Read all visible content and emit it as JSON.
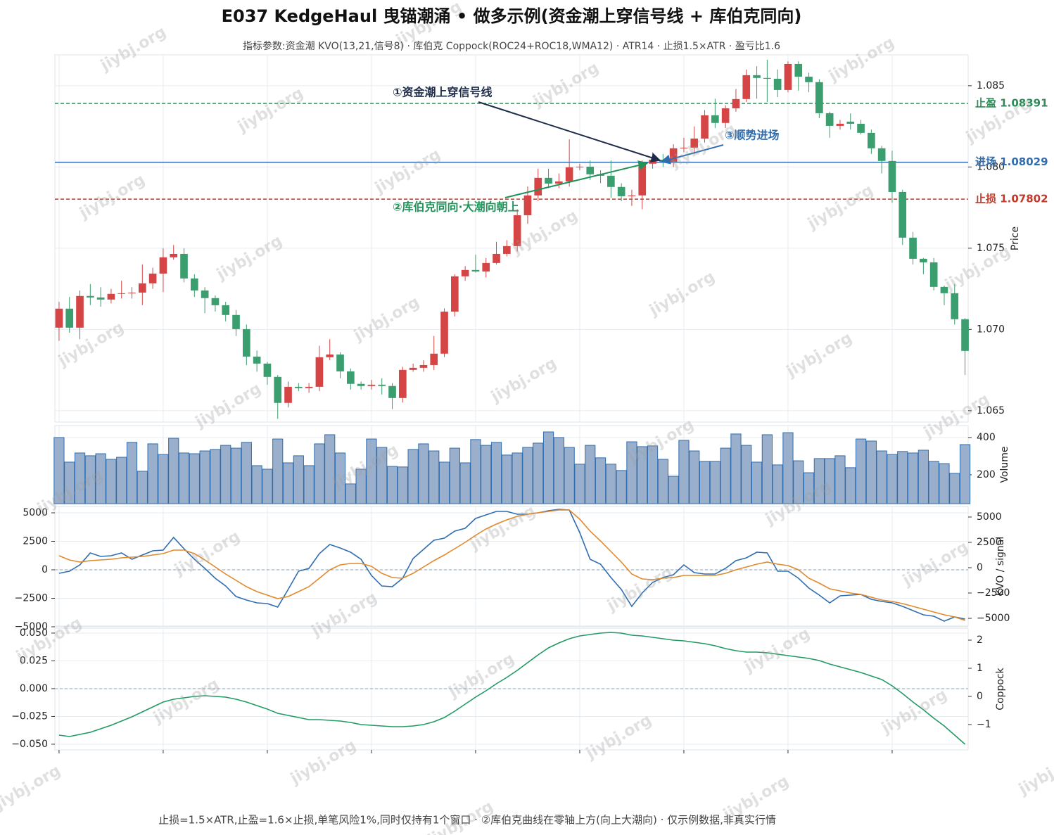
{
  "title": "E037 KedgeHaul 曳锚潮涌 • 做多示例(资金潮上穿信号线 + 库伯克同向)",
  "subtitle": "指标参数:资金潮 KVO(13,21,信号8) · 库伯克 Coppock(ROC24+ROC18,WMA12) · ATR14 · 止损1.5×ATR · 盈亏比1.6",
  "footnote": "止损=1.5×ATR,止盈=1.6×止损,单笔风险1%,同时仅持有1个窗口 · ②库伯克曲线在零轴上方(向上大潮向) · 仅示例数据,非真实行情",
  "watermark": "jiybj.org",
  "chart_data": [
    {
      "type": "candlestick",
      "ylabel": "Price",
      "ytick_side": "right",
      "grid": true,
      "up_color": "#d64545",
      "down_color": "#3a9e6e",
      "xlim": [
        -0.4,
        87.3
      ],
      "xticks": [
        0,
        10,
        20,
        30,
        40,
        50,
        60,
        70,
        80
      ],
      "ylim": [
        1.0643,
        1.0869
      ],
      "yticks": [
        1.065,
        {
          "value": 1.07,
          "label": "1.070"
        },
        1.075,
        {
          "value": 1.08,
          "label": "1.080"
        },
        1.085
      ],
      "open": [
        1.07011,
        1.07128,
        1.07011,
        1.07206,
        1.07197,
        1.07184,
        1.07219,
        1.07223,
        1.07227,
        1.07284,
        1.07344,
        1.07444,
        1.07465,
        1.07314,
        1.0724,
        1.07193,
        1.07149,
        1.07089,
        1.07002,
        1.06833,
        1.0679,
        1.06708,
        1.06548,
        1.06647,
        1.06639,
        1.06647,
        1.06829,
        1.06846,
        1.06742,
        1.06665,
        1.06652,
        1.0666,
        1.06652,
        1.06578,
        1.06751,
        1.06764,
        1.06781,
        1.06851,
        1.0711,
        1.07327,
        1.07366,
        1.07357,
        1.07409,
        1.07465,
        1.07513,
        1.07703,
        1.07825,
        1.07933,
        1.07898,
        1.07911,
        1.07998,
        1.08002,
        1.07955,
        1.07946,
        1.07877,
        1.0782,
        1.07825,
        1.0802,
        1.08045,
        1.08032,
        1.08115,
        1.08119,
        1.08175,
        1.08318,
        1.08271,
        1.08361,
        1.08418,
        1.08565,
        1.08548,
        1.08543,
        1.08474,
        1.08634,
        1.08556,
        1.08522,
        1.08331,
        1.08253,
        1.08279,
        1.08266,
        1.0821,
        1.08115,
        1.08037,
        1.07846,
        1.07565,
        1.07435,
        1.07413,
        1.07262,
        1.07223,
        1.07063
      ],
      "high": [
        1.0717,
        1.072,
        1.0724,
        1.0728,
        1.0726,
        1.0725,
        1.073,
        1.0726,
        1.074,
        1.0738,
        1.075,
        1.0752,
        1.075,
        1.0734,
        1.0726,
        1.0721,
        1.0717,
        1.0712,
        1.0703,
        1.0687,
        1.068,
        1.0672,
        1.0668,
        1.0667,
        1.0667,
        1.069,
        1.0694,
        1.0686,
        1.0676,
        1.0668,
        1.0669,
        1.067,
        1.0667,
        1.0677,
        1.0679,
        1.0681,
        1.0696,
        1.0713,
        1.0734,
        1.0739,
        1.0746,
        1.0744,
        1.0754,
        1.0755,
        1.0774,
        1.0788,
        1.0799,
        1.0799,
        1.0796,
        1.0817,
        1.0802,
        1.0804,
        1.0798,
        1.0804,
        1.079,
        1.0786,
        1.0804,
        1.0809,
        1.0808,
        1.0814,
        1.0818,
        1.0825,
        1.0835,
        1.0842,
        1.0838,
        1.0848,
        1.086,
        1.0862,
        1.0866,
        1.086,
        1.0865,
        1.0865,
        1.0858,
        1.0854,
        1.0834,
        1.0829,
        1.0833,
        1.0829,
        1.0823,
        1.0813,
        1.081,
        1.0786,
        1.076,
        1.0744,
        1.0744,
        1.0727,
        1.0728,
        1.0707
      ],
      "low": [
        1.0693,
        1.0698,
        1.0694,
        1.0715,
        1.0714,
        1.0716,
        1.0719,
        1.0719,
        1.0715,
        1.0725,
        1.0723,
        1.0743,
        1.0729,
        1.072,
        1.071,
        1.0711,
        1.0705,
        1.0696,
        1.0678,
        1.0674,
        1.0666,
        1.0645,
        1.0652,
        1.0662,
        1.0661,
        1.0662,
        1.0681,
        1.067,
        1.0663,
        1.0663,
        1.0663,
        1.066,
        1.0651,
        1.0655,
        1.0674,
        1.0674,
        1.0675,
        1.0683,
        1.0708,
        1.073,
        1.0735,
        1.0732,
        1.074,
        1.0745,
        1.0748,
        1.0765,
        1.0779,
        1.0787,
        1.0787,
        1.0788,
        1.0798,
        1.0792,
        1.079,
        1.0781,
        1.0779,
        1.0776,
        1.0774,
        1.0799,
        1.08,
        1.08,
        1.0809,
        1.0808,
        1.0815,
        1.0824,
        1.0824,
        1.0834,
        1.084,
        1.0842,
        1.084,
        1.0843,
        1.0846,
        1.0847,
        1.0846,
        1.083,
        1.0818,
        1.0823,
        1.0823,
        1.082,
        1.0808,
        1.0796,
        1.0778,
        1.0752,
        1.074,
        1.0734,
        1.0724,
        1.0715,
        1.0703,
        1.0672
      ],
      "close": [
        1.07128,
        1.07011,
        1.07206,
        1.07197,
        1.07184,
        1.07219,
        1.07223,
        1.07227,
        1.07284,
        1.07344,
        1.07444,
        1.07465,
        1.07314,
        1.0724,
        1.07193,
        1.07149,
        1.07089,
        1.07002,
        1.06833,
        1.0679,
        1.06708,
        1.06548,
        1.06647,
        1.06639,
        1.06647,
        1.06829,
        1.06846,
        1.06742,
        1.06665,
        1.06652,
        1.0666,
        1.06652,
        1.06578,
        1.06751,
        1.06764,
        1.06781,
        1.06851,
        1.0711,
        1.07327,
        1.07366,
        1.07357,
        1.07409,
        1.07465,
        1.07513,
        1.07703,
        1.07825,
        1.07933,
        1.07898,
        1.07911,
        1.07998,
        1.08002,
        1.07955,
        1.07946,
        1.07877,
        1.0782,
        1.07825,
        1.0802,
        1.08045,
        1.08032,
        1.08115,
        1.08119,
        1.08175,
        1.08318,
        1.08271,
        1.08361,
        1.08418,
        1.08565,
        1.08548,
        1.08543,
        1.08474,
        1.08634,
        1.08556,
        1.08522,
        1.08331,
        1.08253,
        1.08266,
        1.08266,
        1.0821,
        1.08115,
        1.08037,
        1.07846,
        1.07565,
        1.07435,
        1.07413,
        1.07262,
        1.07223,
        1.07063,
        1.06868
      ],
      "hlines": [
        {
          "label": "止盈 1.08391",
          "value": 1.08391,
          "color": "#2e8b57",
          "style": "dashed"
        },
        {
          "label": "进场 1.08029",
          "value": 1.08029,
          "color": "#2f6db0",
          "style": "solid"
        },
        {
          "label": "止损 1.07802",
          "value": 1.07802,
          "color": "#c0392b",
          "style": "dashed"
        }
      ],
      "annotations": [
        {
          "text": "①资金潮上穿信号线",
          "color": "#1f2d4a"
        },
        {
          "text": "②库伯克同向·大潮向朝上",
          "color": "#21935a"
        },
        {
          "text": "③顺势进场",
          "color": "#2f6db0"
        }
      ]
    },
    {
      "type": "bar",
      "ylabel": "Volume",
      "ytick_side": "right",
      "grid": true,
      "color": "#9aafcb",
      "edge_color": "#2f6db0",
      "xlim": [
        -0.4,
        87.3
      ],
      "xticks": [
        0,
        10,
        20,
        30,
        40,
        50,
        60,
        70,
        80
      ],
      "ylim": [
        45,
        464
      ],
      "yticks": [
        200,
        400
      ],
      "values": [
        400,
        268,
        317,
        302,
        313,
        283,
        294,
        374,
        219,
        366,
        309,
        396,
        317,
        313,
        328,
        336,
        358,
        343,
        374,
        249,
        230,
        392,
        264,
        302,
        249,
        366,
        415,
        317,
        151,
        230,
        392,
        347,
        245,
        242,
        336,
        366,
        328,
        268,
        343,
        264,
        389,
        358,
        374,
        306,
        317,
        347,
        370,
        430,
        400,
        347,
        257,
        358,
        291,
        257,
        223,
        377,
        351,
        355,
        283,
        192,
        385,
        328,
        272,
        272,
        343,
        419,
        358,
        268,
        415,
        253,
        426,
        275,
        211,
        287,
        287,
        302,
        238,
        392,
        381,
        328,
        309,
        325,
        317,
        332,
        272,
        260,
        208,
        362
      ]
    },
    {
      "type": "line",
      "ylabel": "KVO / signal",
      "ytick_side": "left",
      "grid": true,
      "zero_line": true,
      "xlim": [
        -0.4,
        87.3
      ],
      "xticks": [
        0,
        10,
        20,
        30,
        40,
        50,
        60,
        70,
        80
      ],
      "ylim": [
        -4938,
        5555
      ],
      "yticks": [
        {
          "value": -5000,
          "label": "−5000"
        },
        {
          "value": -2500,
          "label": "−2500"
        },
        0,
        2500,
        5000
      ],
      "y2lim": [
        -5764,
        6040
      ],
      "y2ticks": [
        {
          "value": -5000,
          "label": "−5000"
        },
        {
          "value": -2500,
          "label": "−2500"
        },
        0,
        2500,
        5000
      ],
      "series": [
        {
          "color": "#2f6db0",
          "axis": "y",
          "values": [
            -309,
            -123,
            432,
            1481,
            1173,
            1235,
            1481,
            926,
            1296,
            1667,
            1728,
            2840,
            1852,
            926,
            123,
            -741,
            -1420,
            -2346,
            -2654,
            -2901,
            -2963,
            -3272,
            -1728,
            -123,
            123,
            1420,
            2222,
            1914,
            1543,
            926,
            -494,
            -1420,
            -1481,
            -741,
            988,
            1790,
            2593,
            2778,
            3395,
            3642,
            4506,
            4815,
            5123,
            5123,
            4877,
            4877,
            5000,
            5185,
            5309,
            5247,
            3272,
            926,
            494,
            -679,
            -1728,
            -3210,
            -2037,
            -1111,
            -679,
            -432,
            432,
            -247,
            -370,
            -370,
            123,
            802,
            1049,
            1543,
            1481,
            -123,
            -123,
            -741,
            -1605,
            -2222,
            -2901,
            -2284,
            -2222,
            -2160,
            -2593,
            -2778,
            -2901,
            -3210,
            -3580,
            -3951,
            -4074,
            -4506,
            -4136,
            -4321
          ]
        },
        {
          "color": "#e08a2c",
          "axis": "y2",
          "values": [
            1181,
            764,
            556,
            694,
            764,
            833,
            972,
            1042,
            1111,
            1250,
            1389,
            1736,
            1736,
            1389,
            764,
            69,
            -625,
            -1250,
            -1875,
            -2361,
            -2708,
            -3056,
            -2847,
            -2361,
            -1875,
            -1042,
            -208,
            278,
            417,
            417,
            139,
            -556,
            -972,
            -1042,
            -556,
            69,
            694,
            1250,
            1875,
            2500,
            3194,
            3819,
            4306,
            4722,
            5069,
            5278,
            5417,
            5556,
            5694,
            5694,
            4792,
            3611,
            2639,
            1597,
            556,
            -625,
            -1111,
            -1181,
            -1042,
            -972,
            -764,
            -764,
            -764,
            -764,
            -556,
            -208,
            69,
            347,
            556,
            347,
            208,
            -208,
            -1042,
            -1528,
            -2083,
            -2292,
            -2500,
            -2639,
            -2917,
            -3194,
            -3333,
            -3542,
            -3819,
            -4097,
            -4375,
            -4653,
            -4861,
            -5208
          ]
        }
      ]
    },
    {
      "type": "line",
      "ylabel": "Coppock",
      "ytick_side": "left",
      "grid": true,
      "zero_line": true,
      "xtick_marks": true,
      "xlim": [
        -0.4,
        87.3
      ],
      "xticks": [
        0,
        10,
        20,
        30,
        40,
        50,
        60,
        70,
        80
      ],
      "ylim": [
        -0.0551,
        0.0544
      ],
      "yticks": [
        {
          "value": -0.05,
          "label": "−0.050"
        },
        {
          "value": -0.025,
          "label": "−0.025"
        },
        {
          "value": 0,
          "label": "0.000"
        },
        0.025,
        {
          "value": 0.05,
          "label": "0.050"
        }
      ],
      "y2lim": [
        -1.9,
        2.425
      ],
      "y2ticks": [
        {
          "value": -1,
          "label": "−1"
        },
        0,
        1,
        2
      ],
      "series": [
        {
          "color": "#219a63",
          "axis": "y2",
          "values": [
            -1.375,
            -1.425,
            -1.35,
            -1.275,
            -1.15,
            -1.025,
            -0.875,
            -0.725,
            -0.55,
            -0.375,
            -0.2,
            -0.1,
            -0.05,
            0,
            0.025,
            0,
            -0.025,
            -0.1,
            -0.2,
            -0.325,
            -0.45,
            -0.6,
            -0.675,
            -0.75,
            -0.825,
            -0.825,
            -0.85,
            -0.875,
            -0.925,
            -1.0,
            -1.025,
            -1.05,
            -1.075,
            -1.075,
            -1.05,
            -1.0,
            -0.9,
            -0.75,
            -0.525,
            -0.275,
            -0.025,
            0.2,
            0.45,
            0.675,
            0.925,
            1.2,
            1.475,
            1.725,
            1.9,
            2.05,
            2.15,
            2.2,
            2.25,
            2.275,
            2.25,
            2.175,
            2.15,
            2.1,
            2.05,
            2.0,
            1.975,
            1.925,
            1.875,
            1.8,
            1.7,
            1.625,
            1.575,
            1.575,
            1.55,
            1.5,
            1.45,
            1.4,
            1.35,
            1.275,
            1.15,
            1.05,
            0.95,
            0.85,
            0.725,
            0.6,
            0.375,
            0.1,
            -0.2,
            -0.475,
            -0.775,
            -1.05,
            -1.375,
            -1.7
          ]
        }
      ]
    }
  ]
}
